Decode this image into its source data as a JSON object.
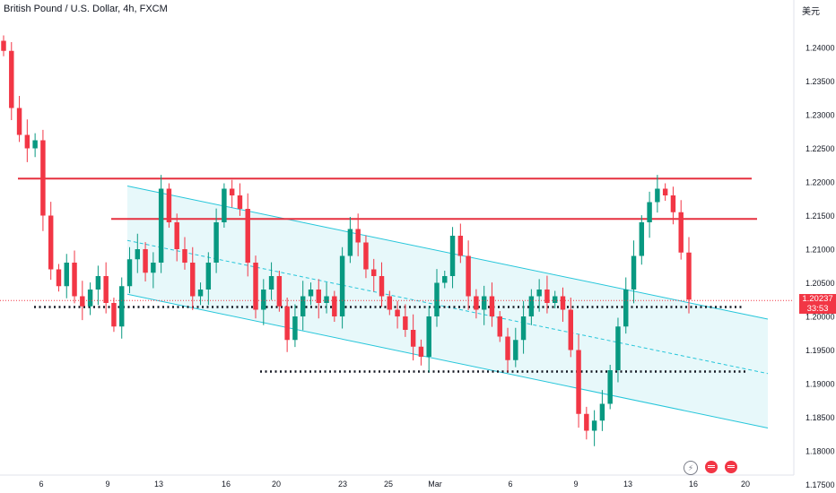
{
  "header": {
    "title": "British Pound / U.S. Dollar, 4h, FXCM",
    "currency": "美元"
  },
  "last_price": {
    "value": "1.20237",
    "countdown": "33:53"
  },
  "icons": [
    "lightning-icon",
    "us-flag-icon",
    "us-flag-icon"
  ],
  "colors": {
    "up": "#089981",
    "down": "#f23645",
    "channel": "#26c6da",
    "channel_fill": "#e4f7f9",
    "resistance": "#e6303f",
    "support": "#131722"
  },
  "chart_data": {
    "type": "candlestick",
    "title": "British Pound / U.S. Dollar, 4h, FXCM",
    "x_tick_labels": [
      "6",
      "9",
      "13",
      "16",
      "20",
      "23",
      "25",
      "Mar",
      "6",
      "9",
      "13",
      "16",
      "20"
    ],
    "y_tick_labels": [
      "1.24000",
      "1.23500",
      "1.23000",
      "1.22500",
      "1.22000",
      "1.21500",
      "1.21000",
      "1.20500",
      "1.20000",
      "1.19500",
      "1.19000",
      "1.18500",
      "1.18000",
      "1.17500"
    ],
    "ylim": [
      1.1745,
      1.2448
    ],
    "grid": false,
    "ohlc_close_path": [
      1.2395,
      1.231,
      1.227,
      1.225,
      1.2262,
      1.215,
      1.207,
      1.2045,
      1.208,
      1.203,
      1.2015,
      1.204,
      1.206,
      1.202,
      1.1985,
      1.2045,
      1.2085,
      1.21,
      1.2065,
      1.208,
      1.219,
      1.214,
      1.21,
      1.208,
      1.203,
      1.204,
      1.208,
      1.214,
      1.219,
      1.218,
      1.216,
      1.208,
      1.201,
      1.204,
      1.206,
      1.2015,
      1.1965,
      1.2,
      1.203,
      1.204,
      1.202,
      1.203,
      1.2,
      1.209,
      1.213,
      1.211,
      1.207,
      1.206,
      1.203,
      1.201,
      1.2,
      1.198,
      1.1955,
      1.194,
      1.2,
      1.205,
      1.206,
      1.212,
      1.209,
      1.203,
      1.201,
      1.203,
      1.2,
      1.197,
      1.1935,
      1.1965,
      1.2,
      1.203,
      1.204,
      1.202,
      1.203,
      1.201,
      1.195,
      1.1855,
      1.183,
      1.1845,
      1.187,
      1.192,
      1.1985,
      1.204,
      1.209,
      1.214,
      1.217,
      1.219,
      1.218,
      1.2155,
      1.2095,
      1.2025
    ],
    "last_value": 1.20237,
    "resistance_levels": [
      1.2205,
      1.2145
    ],
    "support_levels": [
      1.2014,
      1.1918
    ],
    "channel": {
      "upper": [
        {
          "x": "10",
          "y": 1.2194
        },
        {
          "x": "20",
          "y": 1.1996
        }
      ],
      "middle": [
        {
          "x": "10",
          "y": 1.2113
        },
        {
          "x": "20",
          "y": 1.1915
        }
      ],
      "lower": [
        {
          "x": "10",
          "y": 1.2033
        },
        {
          "x": "20",
          "y": 1.1834
        }
      ]
    }
  }
}
